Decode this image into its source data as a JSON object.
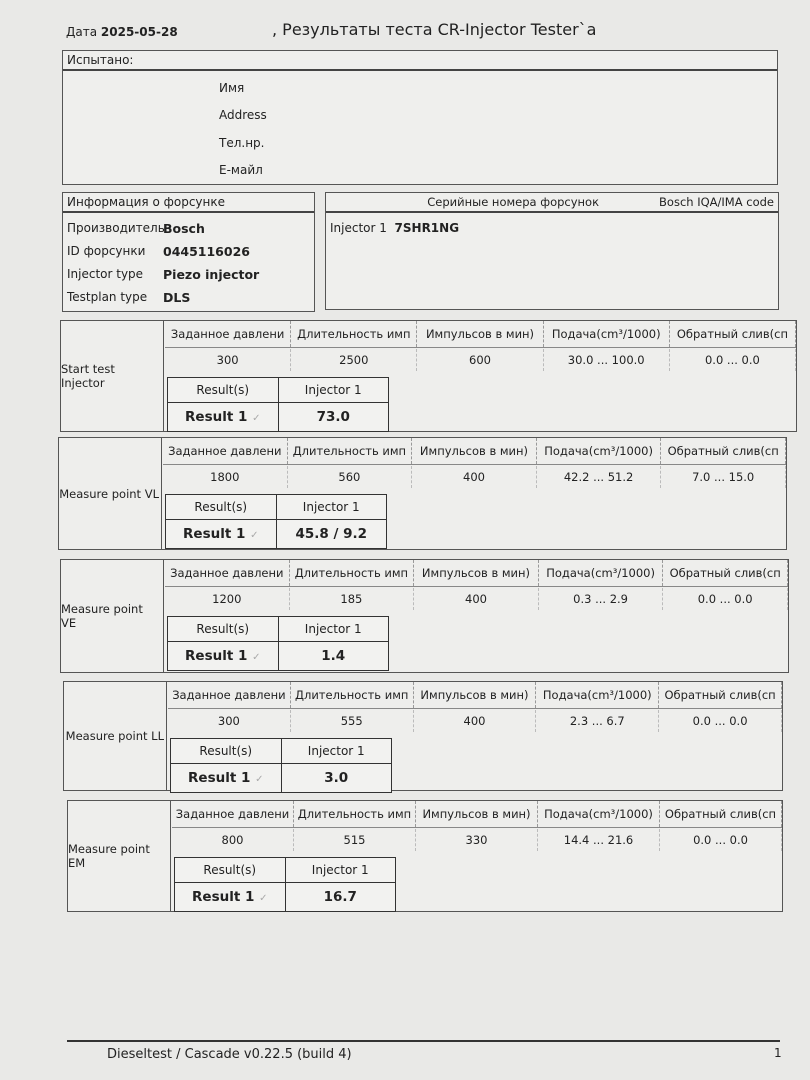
{
  "header": {
    "date_label": "Дата",
    "date": "2025-05-28",
    "title": ", Результаты теста CR-Injector Tester`a"
  },
  "tested": {
    "heading": "Испытано:",
    "fields": [
      "Имя",
      "Address",
      "Тел.нр.",
      "E-майл"
    ]
  },
  "injector_info": {
    "heading": "Информация о форсунке",
    "rows": [
      {
        "label": "Производитель",
        "value": "Bosch"
      },
      {
        "label": "ID форсунки",
        "value": "0445116026"
      },
      {
        "label": "Injector type",
        "value": "Piezo injector"
      },
      {
        "label": "Testplan type",
        "value": "DLS"
      }
    ]
  },
  "serials": {
    "heading": "Серийные номера форсунок",
    "code_heading": "Bosch IQA/IMA code",
    "injector_label": "Injector 1",
    "injector_code": "7SHR1NG"
  },
  "columns": [
    "Заданное давлени",
    "Длительность имп",
    "Импульсов в мин)",
    "Подача(cm³/1000)",
    "Обратный слив(cп"
  ],
  "result_headers": {
    "results": "Result(s)",
    "injector": "Injector 1",
    "row_label": "Result 1",
    "check": "✓"
  },
  "tests": [
    {
      "name": "Start test Injector",
      "values": [
        "300",
        "2500",
        "600",
        "30.0 ... 100.0",
        "0.0 ... 0.0"
      ],
      "result": "73.0"
    },
    {
      "name": "Measure point VL",
      "values": [
        "1800",
        "560",
        "400",
        "42.2 ... 51.2",
        "7.0 ... 15.0"
      ],
      "result": "45.8 / 9.2"
    },
    {
      "name": "Measure point VE",
      "values": [
        "1200",
        "185",
        "400",
        "0.3 ... 2.9",
        "0.0 ... 0.0"
      ],
      "result": "1.4"
    },
    {
      "name": "Measure point LL",
      "values": [
        "300",
        "555",
        "400",
        "2.3 ... 6.7",
        "0.0 ... 0.0"
      ],
      "result": "3.0"
    },
    {
      "name": "Measure point EM",
      "values": [
        "800",
        "515",
        "330",
        "14.4 ... 21.6",
        "0.0 ... 0.0"
      ],
      "result": "16.7"
    }
  ],
  "footer": {
    "software": "Dieseltest / Cascade v0.22.5 (build 4)",
    "page": "1"
  }
}
